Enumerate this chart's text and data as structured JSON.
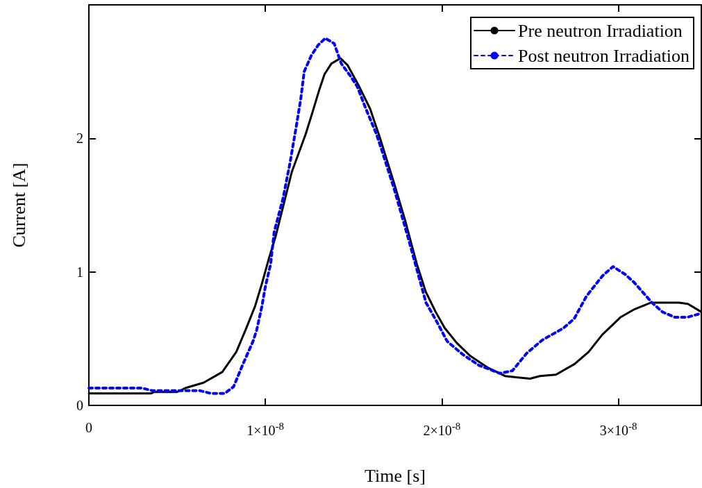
{
  "chart_data": {
    "type": "line",
    "xlabel": "Time [s]",
    "ylabel": "Current [A]",
    "xlim": [
      0,
      3.47e-08
    ],
    "ylim": [
      0,
      3
    ],
    "xticks": [
      0,
      {
        "value": 1e-08,
        "label": "1×10$^{-8}$"
      },
      {
        "value": 2e-08,
        "label": "2×10$^{-8}$"
      },
      {
        "value": 3e-08,
        "label": "3×10$^{-8}$"
      }
    ],
    "yticks": [
      0,
      1,
      2
    ],
    "grid": false,
    "legend": "top right",
    "marker": "none",
    "series": [
      {
        "name": "Pre neutron Irradiation",
        "color": "#000000",
        "line_style": "solid",
        "x": [
          0,
          3.54e-09,
          3.7e-09,
          5e-09,
          5.47e-09,
          6.5e-09,
          7.56e-09,
          8.35e-09,
          8.86e-09,
          9.41e-09,
          9.8e-09,
          1.02e-08,
          1.059e-08,
          1.15e-08,
          1.228e-08,
          1.268e-08,
          1.307e-08,
          1.335e-08,
          1.374e-08,
          1.425e-08,
          1.465e-08,
          1.531e-08,
          1.594e-08,
          1.65e-08,
          1.728e-08,
          1.791e-08,
          1.858e-08,
          1.909e-08,
          1.965e-08,
          2.016e-08,
          2.083e-08,
          2.161e-08,
          2.264e-08,
          2.358e-08,
          2.421e-08,
          2.5e-08,
          2.555e-08,
          2.646e-08,
          2.752e-08,
          2.831e-08,
          2.909e-08,
          3.012e-08,
          3.091e-08,
          3.185e-08,
          3.343e-08,
          3.394e-08,
          3.47e-08
        ],
        "values": [
          0.09,
          0.09,
          0.1,
          0.1,
          0.13,
          0.17,
          0.25,
          0.4,
          0.56,
          0.74,
          0.91,
          1.1,
          1.27,
          1.75,
          2.03,
          2.2,
          2.37,
          2.48,
          2.56,
          2.6,
          2.55,
          2.39,
          2.22,
          2.0,
          1.67,
          1.39,
          1.06,
          0.85,
          0.7,
          0.58,
          0.47,
          0.37,
          0.28,
          0.22,
          0.21,
          0.2,
          0.22,
          0.23,
          0.31,
          0.4,
          0.53,
          0.66,
          0.72,
          0.77,
          0.77,
          0.76,
          0.7
        ]
      },
      {
        "name": "Post neutron Irradiation",
        "color": "#0000ff",
        "line_style": "dotted",
        "x": [
          0,
          3e-09,
          3.6e-09,
          6.3e-09,
          6.9e-09,
          7.7e-09,
          8.2e-09,
          8.7e-09,
          9.3e-09,
          9.5e-09,
          9.8e-09,
          1e-08,
          1.03e-08,
          1.05e-08,
          1.1e-08,
          1.14e-08,
          1.17e-08,
          1.2e-08,
          1.22e-08,
          1.26e-08,
          1.3e-08,
          1.34e-08,
          1.39e-08,
          1.43e-08,
          1.48e-08,
          1.52e-08,
          1.57e-08,
          1.63e-08,
          1.66e-08,
          1.73e-08,
          1.81e-08,
          1.86e-08,
          1.91e-08,
          1.97e-08,
          2.03e-08,
          2.12e-08,
          2.21e-08,
          2.33e-08,
          2.4e-08,
          2.48e-08,
          2.57e-08,
          2.69e-08,
          2.75e-08,
          2.82e-08,
          2.91e-08,
          2.97e-08,
          3.04e-08,
          3.09e-08,
          3.19e-08,
          3.25e-08,
          3.32e-08,
          3.39e-08,
          3.47e-08
        ],
        "values": [
          0.13,
          0.13,
          0.11,
          0.11,
          0.09,
          0.09,
          0.14,
          0.3,
          0.48,
          0.56,
          0.74,
          0.89,
          1.06,
          1.3,
          1.55,
          1.82,
          2.05,
          2.29,
          2.5,
          2.62,
          2.7,
          2.75,
          2.71,
          2.56,
          2.47,
          2.39,
          2.22,
          2.03,
          1.91,
          1.62,
          1.25,
          1.01,
          0.77,
          0.63,
          0.48,
          0.38,
          0.3,
          0.24,
          0.26,
          0.39,
          0.49,
          0.58,
          0.65,
          0.82,
          0.97,
          1.04,
          0.98,
          0.92,
          0.77,
          0.7,
          0.66,
          0.66,
          0.69
        ]
      }
    ]
  }
}
